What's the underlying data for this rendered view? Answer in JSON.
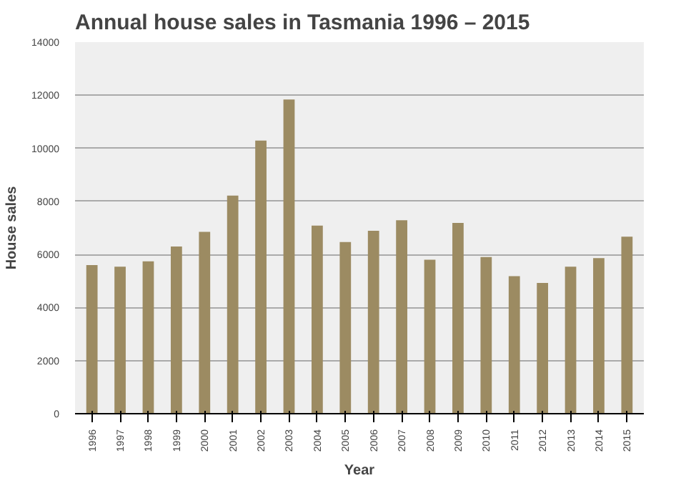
{
  "chart_data": {
    "type": "bar",
    "title": "Annual house sales in Tasmania 1996 – 2015",
    "xlabel": "Year",
    "ylabel": "House sales",
    "categories": [
      "1996",
      "1997",
      "1998",
      "1999",
      "2000",
      "2001",
      "2002",
      "2003",
      "2004",
      "2005",
      "2006",
      "2007",
      "2008",
      "2009",
      "2010",
      "2011",
      "2012",
      "2013",
      "2014",
      "2015"
    ],
    "values": [
      5600,
      5540,
      5740,
      6300,
      6850,
      8220,
      10290,
      11840,
      7090,
      6470,
      6890,
      7290,
      5800,
      7190,
      5900,
      5180,
      4930,
      5540,
      5860,
      6670
    ],
    "color": "#9c8b62",
    "ylim": [
      0,
      14000
    ],
    "yticks": [
      0,
      2000,
      4000,
      6000,
      8000,
      10000,
      12000,
      14000
    ],
    "grid": "y"
  }
}
